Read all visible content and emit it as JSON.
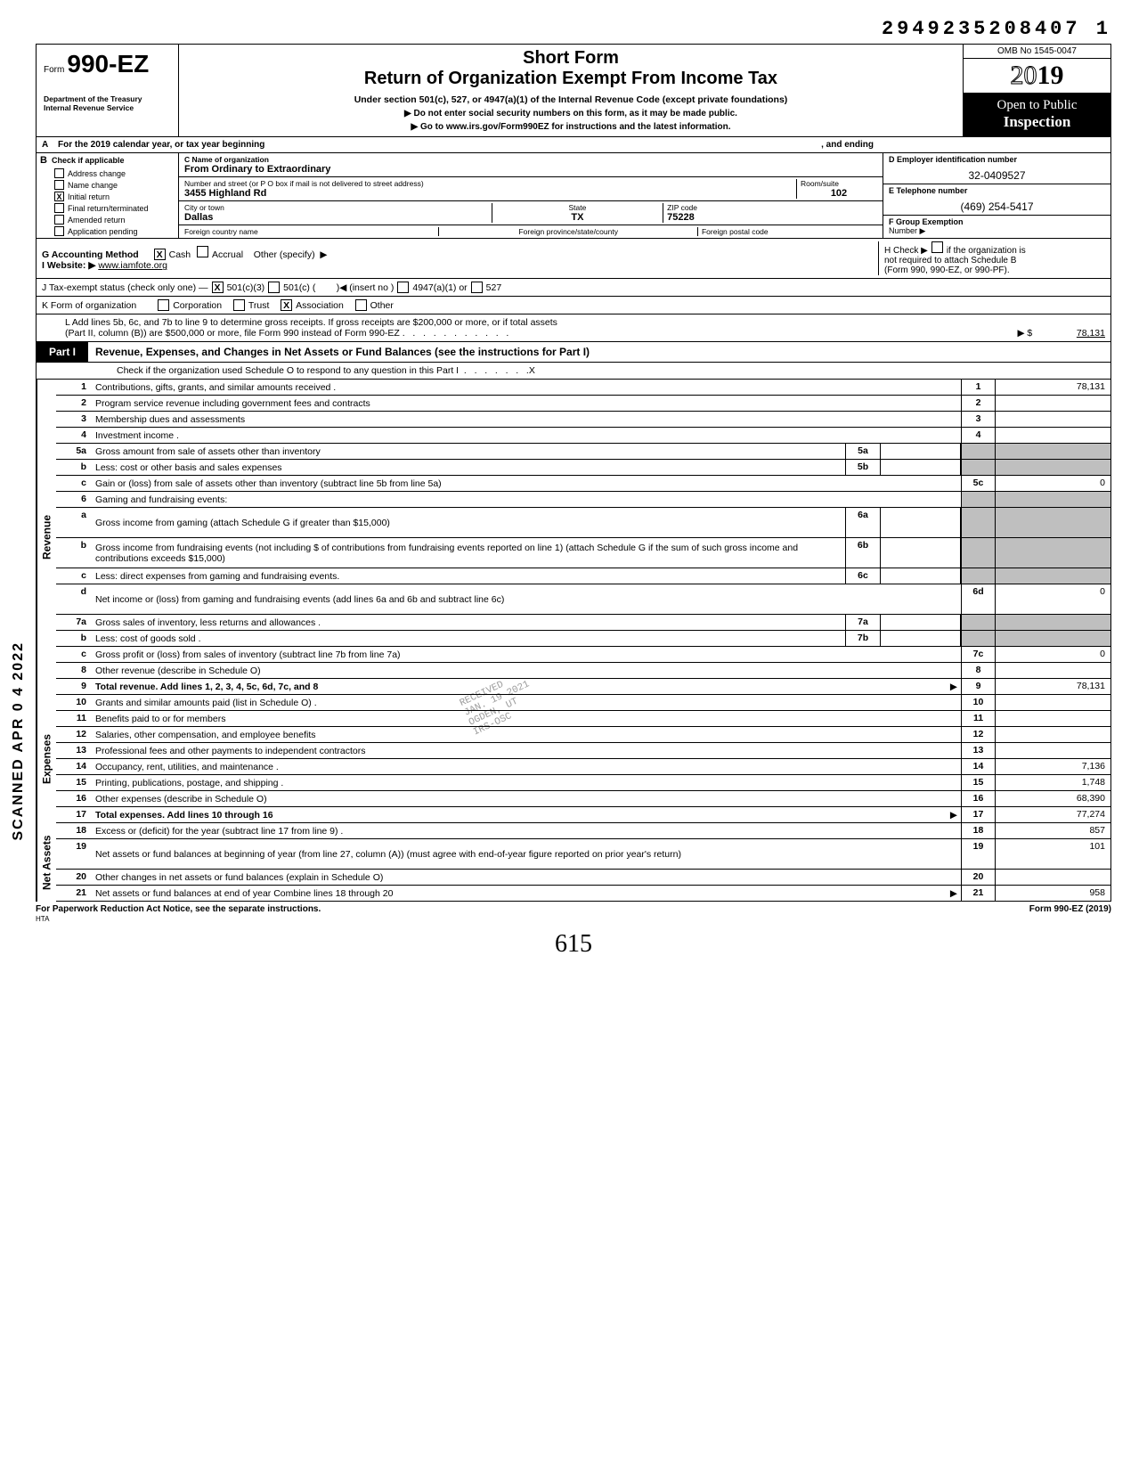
{
  "top_id": "2949235208407 1",
  "omb": "OMB No 1545-0047",
  "form_prefix": "Form",
  "form_no": "990-EZ",
  "dept1": "Department of the Treasury",
  "dept2": "Internal Revenue Service",
  "short_form": "Short Form",
  "return_title": "Return of Organization Exempt From Income Tax",
  "subtitle": "Under section 501(c), 527, or 4947(a)(1) of the Internal Revenue Code (except private foundations)",
  "directive1": "Do not enter social security numbers on this form, as it may be made public.",
  "directive2": "Go to www.irs.gov/Form990EZ for instructions and the latest information.",
  "year_outline": "20",
  "year_bold": "19",
  "open1": "Open to Public",
  "open2": "Inspection",
  "rowA": "For the 2019 calendar year, or tax year beginning",
  "rowA_end": ", and ending",
  "B_label": "B",
  "B_check": "Check if applicable",
  "B_items": [
    "Address change",
    "Name change",
    "Initial return",
    "Final return/terminated",
    "Amended return",
    "Application pending"
  ],
  "B_checked_idx": 2,
  "C_label": "C  Name of organization",
  "C_name": "From Ordinary to Extraordinary",
  "C_street_lab": "Number and street (or P O  box if mail is not delivered to street address)",
  "C_street": "3455 Highland Rd",
  "C_room_lab": "Room/suite",
  "C_room": "102",
  "C_city_lab": "City or town",
  "C_city": "Dallas",
  "C_state_lab": "State",
  "C_state": "TX",
  "C_zip_lab": "ZIP code",
  "C_zip": "75228",
  "C_foreign_lab": "Foreign country name",
  "C_fprov_lab": "Foreign province/state/county",
  "C_fpost_lab": "Foreign postal code",
  "D_label": "D  Employer identification number",
  "D_ein": "32-0409527",
  "E_label": "E  Telephone number",
  "E_phone": "(469) 254-5417",
  "F_label": "F  Group Exemption",
  "F_label2": "Number ▶",
  "G_label": "G   Accounting Method",
  "G_cash": "Cash",
  "G_accrual": "Accrual",
  "G_other": "Other (specify)",
  "H_label": "H  Check ▶",
  "H_text1": "if the organization is",
  "H_text2": "not required to attach Schedule B",
  "H_text3": "(Form 990, 990-EZ, or 990-PF).",
  "I_label": "I    Website: ▶",
  "I_site": "www.iamfote.org",
  "J_label": "J    Tax-exempt status (check only one) —",
  "J_501c3": "501(c)(3)",
  "J_501c": "501(c) (",
  "J_insert": ")◀ (insert no )",
  "J_4947": "4947(a)(1) or",
  "J_527": "527",
  "K_label": "K  Form of organization",
  "K_corp": "Corporation",
  "K_trust": "Trust",
  "K_assoc": "Association",
  "K_other": "Other",
  "L_text1": "L   Add lines 5b, 6c, and 7b to line 9 to determine gross receipts. If gross receipts are $200,000 or more, or if total assets",
  "L_text2": "(Part II, column (B)) are $500,000 or more, file Form 990 instead of Form 990-EZ",
  "L_amount": "78,131",
  "part1_tab": "Part I",
  "part1_title": "Revenue, Expenses, and Changes in Net Assets or Fund Balances (see the instructions for Part I)",
  "part1_sub": "Check if the organization used Schedule O to respond to any question in this Part I",
  "sections": {
    "revenue": {
      "label": "Revenue",
      "rows": [
        {
          "n": "1",
          "desc": "Contributions, gifts, grants, and similar amounts received .",
          "rn": "1",
          "val": "78,131"
        },
        {
          "n": "2",
          "desc": "Program service revenue including government fees and contracts",
          "rn": "2",
          "val": ""
        },
        {
          "n": "3",
          "desc": "Membership dues and assessments",
          "rn": "3",
          "val": ""
        },
        {
          "n": "4",
          "desc": "Investment income .",
          "rn": "4",
          "val": ""
        },
        {
          "n": "5a",
          "desc": "Gross amount from sale of assets other than inventory",
          "mid": "5a",
          "shaded": true
        },
        {
          "n": "b",
          "sub": true,
          "desc": "Less: cost or other basis and sales expenses",
          "mid": "5b",
          "shaded": true
        },
        {
          "n": "c",
          "sub": true,
          "desc": "Gain or (loss) from sale of assets other than inventory (subtract line 5b from line 5a)",
          "rn": "5c",
          "val": "0"
        },
        {
          "n": "6",
          "desc": "Gaming and fundraising events:",
          "shaded": true,
          "noright": true
        },
        {
          "n": "a",
          "sub": true,
          "desc": "Gross income from gaming (attach Schedule G if greater than $15,000)",
          "mid": "6a",
          "shaded": true,
          "multi": true
        },
        {
          "n": "b",
          "sub": true,
          "desc": "Gross income from fundraising events (not including        $                     of contributions from fundraising events reported on line 1) (attach Schedule G if the sum of such gross income and contributions exceeds $15,000)",
          "mid": "6b",
          "shaded": true,
          "multi": true
        },
        {
          "n": "c",
          "sub": true,
          "desc": "Less: direct expenses from gaming and fundraising events.",
          "mid": "6c",
          "shaded": true
        },
        {
          "n": "d",
          "sub": true,
          "desc": "Net income or (loss) from gaming and fundraising events (add lines 6a and 6b and subtract line 6c)",
          "rn": "6d",
          "val": "0",
          "multi": true
        },
        {
          "n": "7a",
          "desc": "Gross sales of inventory, less returns and allowances .",
          "mid": "7a",
          "shaded": true
        },
        {
          "n": "b",
          "sub": true,
          "desc": "Less: cost of goods sold .",
          "mid": "7b",
          "shaded": true
        },
        {
          "n": "c",
          "sub": true,
          "desc": "Gross profit or (loss) from sales of inventory (subtract line 7b from line 7a)",
          "rn": "7c",
          "val": "0"
        },
        {
          "n": "8",
          "desc": "Other revenue (describe in Schedule O)",
          "rn": "8",
          "val": ""
        },
        {
          "n": "9",
          "desc": "Total revenue. Add lines 1, 2, 3, 4, 5c, 6d, 7c, and 8",
          "rn": "9",
          "val": "78,131",
          "bold": true,
          "arrow": true
        }
      ]
    },
    "expenses": {
      "label": "Expenses",
      "rows": [
        {
          "n": "10",
          "desc": "Grants and similar amounts paid (list in Schedule O) .",
          "rn": "10",
          "val": ""
        },
        {
          "n": "11",
          "desc": "Benefits paid to or for members",
          "rn": "11",
          "val": ""
        },
        {
          "n": "12",
          "desc": "Salaries, other compensation, and employee benefits",
          "rn": "12",
          "val": ""
        },
        {
          "n": "13",
          "desc": "Professional fees and other payments to independent contractors",
          "rn": "13",
          "val": ""
        },
        {
          "n": "14",
          "desc": "Occupancy, rent, utilities, and maintenance .",
          "rn": "14",
          "val": "7,136"
        },
        {
          "n": "15",
          "desc": "Printing, publications, postage, and shipping .",
          "rn": "15",
          "val": "1,748"
        },
        {
          "n": "16",
          "desc": "Other expenses (describe in Schedule O)",
          "rn": "16",
          "val": "68,390"
        },
        {
          "n": "17",
          "desc": "Total expenses. Add lines 10 through 16",
          "rn": "17",
          "val": "77,274",
          "bold": true,
          "arrow": true
        }
      ]
    },
    "netassets": {
      "label": "Net Assets",
      "rows": [
        {
          "n": "18",
          "desc": "Excess or (deficit) for the year (subtract line 17 from line 9) .",
          "rn": "18",
          "val": "857"
        },
        {
          "n": "19",
          "desc": "Net assets or fund balances at beginning of year (from line 27, column (A)) (must agree with end-of-year figure reported on prior year's return)",
          "rn": "19",
          "val": "101",
          "multi": true
        },
        {
          "n": "20",
          "desc": "Other changes in net assets or fund balances (explain in Schedule O)",
          "rn": "20",
          "val": ""
        },
        {
          "n": "21",
          "desc": "Net assets or fund balances at end of year  Combine lines 18 through 20",
          "rn": "21",
          "val": "958",
          "arrow": true
        }
      ]
    }
  },
  "footer_left": "For Paperwork Reduction Act Notice, see the separate instructions.",
  "footer_hta": "HTA",
  "footer_right": "Form 990-EZ (2019)",
  "handwritten": "615",
  "scanned": "SCANNED APR 0 4 2022",
  "stamp_recv": "RECEIVED",
  "stamp_date": "JAN. 19 2021",
  "stamp_ogden": "OGDEN, UT",
  "stamp_irs": "IRS-OSC"
}
